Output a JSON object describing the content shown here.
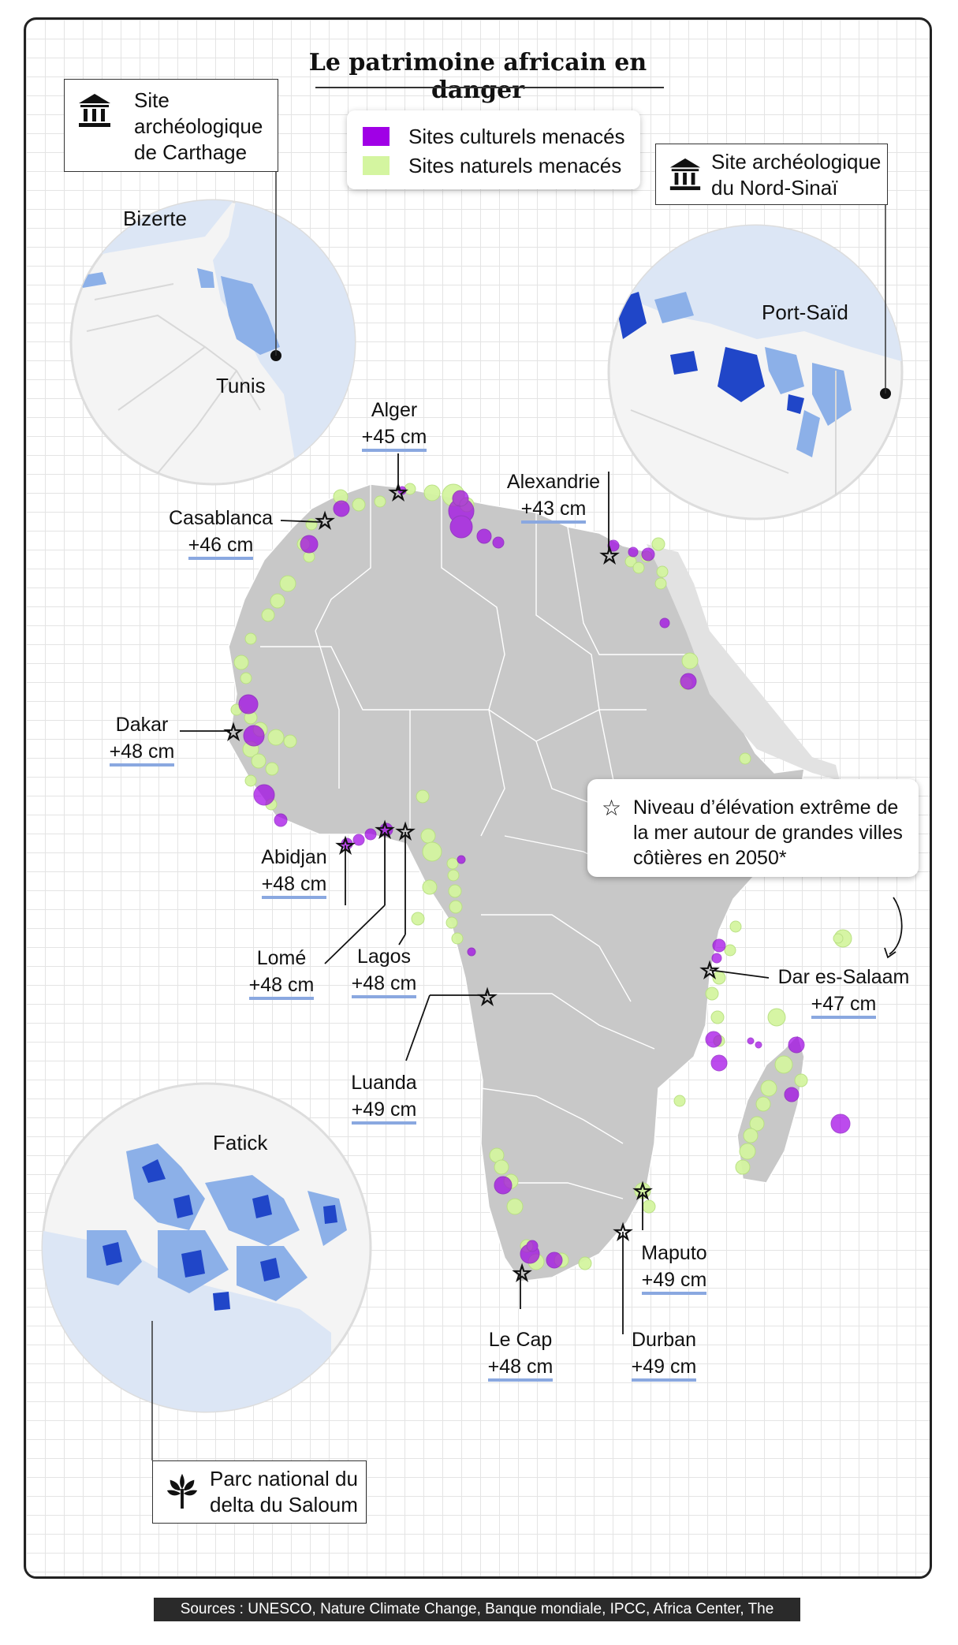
{
  "title": "Le patrimoine africain en danger",
  "legend": {
    "cultural": {
      "label": "Sites culturels menacés",
      "color": "#a000e6"
    },
    "natural": {
      "label": "Sites naturels menacés",
      "color": "#d4f5a0"
    }
  },
  "callouts": {
    "carthage": {
      "line1": "Site",
      "line2": "archéologique",
      "line3": "de Carthage",
      "icon": "museum-icon"
    },
    "sinai": {
      "line1": "Site archéologique",
      "line2": "du Nord-Sinaï",
      "icon": "museum-icon"
    },
    "saloum": {
      "line1": "Parc national du",
      "line2": "delta du Saloum",
      "icon": "tree-icon"
    }
  },
  "insets": {
    "carthage": {
      "labels": [
        "Bizerte",
        "Tunis"
      ]
    },
    "portsaid": {
      "labels": [
        "Port-Saïd"
      ]
    },
    "fatick": {
      "labels": [
        "Fatick"
      ]
    }
  },
  "star_legend": {
    "line1": "Niveau d’élévation extrême de",
    "line2": "la mer autour de grandes villes",
    "line3": "côtières en 2050*"
  },
  "cities": [
    {
      "name": "Alger",
      "value": "+45 cm"
    },
    {
      "name": "Alexandrie",
      "value": "+43 cm"
    },
    {
      "name": "Casablanca",
      "value": "+46 cm"
    },
    {
      "name": "Dakar",
      "value": "+48 cm"
    },
    {
      "name": "Abidjan",
      "value": "+48 cm"
    },
    {
      "name": "Lomé",
      "value": "+48 cm"
    },
    {
      "name": "Lagos",
      "value": "+48 cm"
    },
    {
      "name": "Luanda",
      "value": "+49 cm"
    },
    {
      "name": "Dar es-Salaam",
      "value": "+47 cm"
    },
    {
      "name": "Maputo",
      "value": "+49 cm"
    },
    {
      "name": "Durban",
      "value": "+49 cm"
    },
    {
      "name": "Le Cap",
      "value": "+48 cm"
    }
  ],
  "colors": {
    "land": "#c8c8c8",
    "water": "#dce6f5",
    "flood_dark": "#2046c8",
    "flood_light": "#8cb0e8"
  },
  "footer": "Sources : UNESCO, Nature Climate Change, Banque mondiale, IPCC, Africa Center, The Conversation"
}
